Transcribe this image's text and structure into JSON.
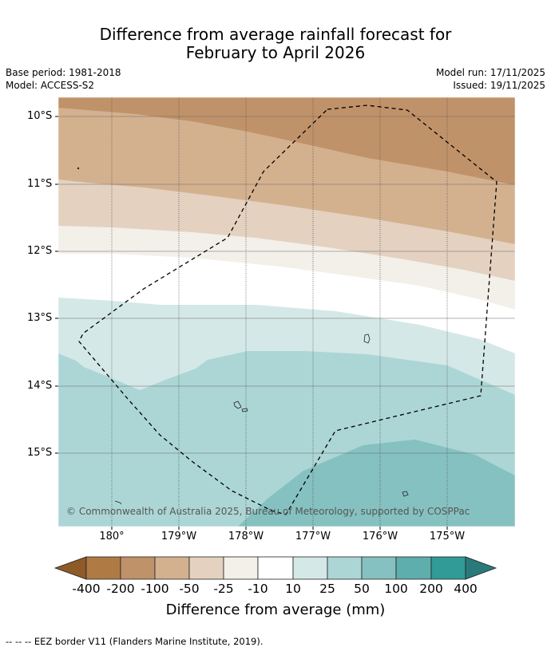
{
  "title_line1": "Difference from average rainfall forecast for",
  "title_line2": "February to April 2026",
  "meta": {
    "base_period": "Base period: 1981-2018",
    "model": "Model: ACCESS-S2",
    "model_run": "Model run: 17/11/2025",
    "issued": "Issued: 19/11/2025"
  },
  "map": {
    "lat_labels": [
      "10°S",
      "11°S",
      "12°S",
      "13°S",
      "14°S",
      "15°S"
    ],
    "lon_labels": [
      "180°",
      "179°W",
      "178°W",
      "177°W",
      "176°W",
      "175°W"
    ],
    "copyright": "© Commonwealth of Australia 2025, Bureau of Meteorology, supported by COSPPac"
  },
  "colorbar": {
    "ticks": [
      "-400",
      "-200",
      "-100",
      "-50",
      "-25",
      "-10",
      "10",
      "25",
      "50",
      "100",
      "200",
      "400"
    ],
    "colors": [
      "#8e5a28",
      "#b07a45",
      "#c09269",
      "#d3b18f",
      "#e4d1c0",
      "#f3efe9",
      "#ffffff",
      "#d4e8e7",
      "#acd6d5",
      "#85c1c0",
      "#5eaeae",
      "#319b98",
      "#2b7a7a"
    ],
    "label": "Difference from average (mm)"
  },
  "footnote": "--  --  -- EEZ border V11 (Flanders Marine Institute, 2019)."
}
